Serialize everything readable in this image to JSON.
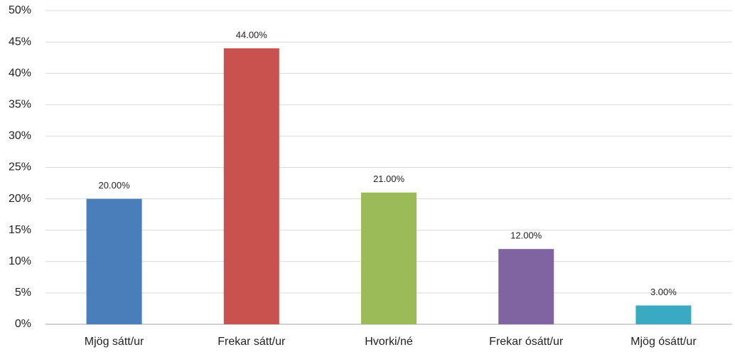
{
  "chart_data": {
    "type": "bar",
    "categories": [
      "Mjög sátt/ur",
      "Frekar sátt/ur",
      "Hvorki/né",
      "Frekar ósátt/ur",
      "Mjög ósátt/ur"
    ],
    "values": [
      20,
      44,
      21,
      12,
      3
    ],
    "value_labels": [
      "20.00%",
      "44.00%",
      "21.00%",
      "12.00%",
      "3.00%"
    ],
    "colors": [
      "#4a7ebb",
      "#c9514e",
      "#9bbb59",
      "#8064a2",
      "#3aa9c2"
    ],
    "ylim": [
      0,
      50
    ],
    "yticks": [
      {
        "value": 0,
        "label": "0%"
      },
      {
        "value": 5,
        "label": "5%"
      },
      {
        "value": 10,
        "label": "10%"
      },
      {
        "value": 15,
        "label": "15%"
      },
      {
        "value": 20,
        "label": "20%"
      },
      {
        "value": 25,
        "label": "25%"
      },
      {
        "value": 30,
        "label": "30%"
      },
      {
        "value": 35,
        "label": "35%"
      },
      {
        "value": 40,
        "label": "40%"
      },
      {
        "value": 45,
        "label": "45%"
      },
      {
        "value": 50,
        "label": "50%"
      }
    ],
    "grid": true
  }
}
